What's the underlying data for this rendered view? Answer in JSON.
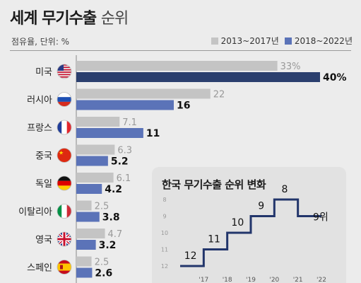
{
  "header": {
    "title_main": "세계 무기수출",
    "title_sub": "순위",
    "unit_note": "점유율, 단위: %"
  },
  "colors": {
    "period1": "#c4c4c4",
    "period2": "#5b73b8",
    "period2_top": "#2b3f6e",
    "step_line": "#22356b",
    "label_light": "#999999",
    "label_dark": "#111111"
  },
  "chart_data": [
    {
      "type": "bar",
      "orientation": "horizontal",
      "title": "",
      "categories": [
        "미국",
        "러시아",
        "프랑스",
        "중국",
        "독일",
        "이탈리아",
        "영국",
        "스페인"
      ],
      "category_icons": [
        "us-flag-icon",
        "russia-flag-icon",
        "france-flag-icon",
        "china-flag-icon",
        "germany-flag-icon",
        "italy-flag-icon",
        "uk-flag-icon",
        "spain-flag-icon"
      ],
      "series": [
        {
          "name": "2013~2017년",
          "values": [
            33,
            22,
            7.1,
            6.3,
            6.1,
            2.5,
            4.7,
            2.5
          ]
        },
        {
          "name": "2018~2022년",
          "values": [
            40,
            16,
            11,
            5.2,
            4.2,
            3.8,
            3.2,
            2.6
          ]
        }
      ],
      "value_labels": [
        [
          "33%",
          "22",
          "7.1",
          "6.3",
          "6.1",
          "2.5",
          "4.7",
          "2.5"
        ],
        [
          "40%",
          "16",
          "11",
          "5.2",
          "4.2",
          "3.8",
          "3.2",
          "2.6"
        ]
      ],
      "xlim": [
        0,
        40
      ],
      "legend_position": "top-right"
    },
    {
      "type": "line",
      "title": "한국 무기수출 순위 변화",
      "step": true,
      "y_inverted": true,
      "ylim": [
        12,
        8
      ],
      "yticks": [
        8,
        9,
        10,
        11,
        12
      ],
      "x_labels": [
        "'17",
        "'18",
        "'19",
        "'20",
        "'21",
        "'22"
      ],
      "y": [
        12,
        11,
        10,
        9,
        8,
        9
      ],
      "point_labels": [
        "12",
        "11",
        "10",
        "9",
        "8",
        "9위"
      ]
    }
  ]
}
